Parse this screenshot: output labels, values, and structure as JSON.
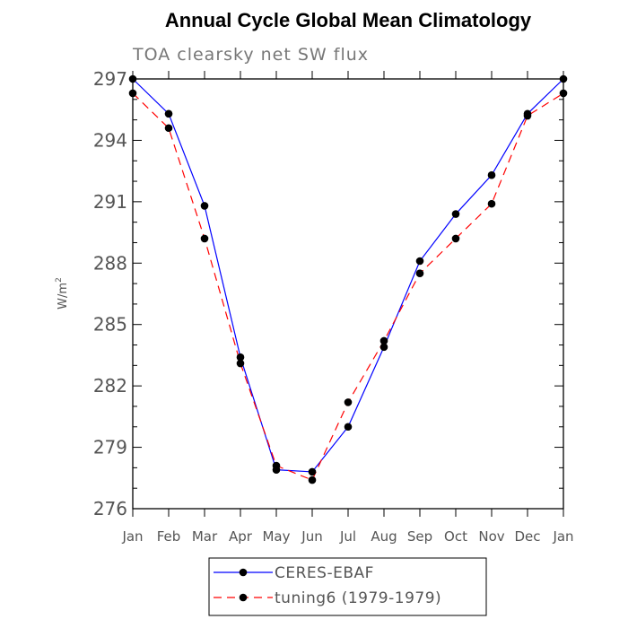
{
  "chart_data": {
    "type": "line",
    "title": "Annual Cycle Global Mean Climatology",
    "subtitle": "TOA clearsky net SW flux",
    "ylabel": "W/m",
    "ylabel_superscript": "2",
    "ylim": [
      276,
      297
    ],
    "yticks": [
      276,
      279,
      282,
      285,
      288,
      291,
      294,
      297
    ],
    "categories": [
      "Jan",
      "Feb",
      "Mar",
      "Apr",
      "May",
      "Jun",
      "Jul",
      "Aug",
      "Sep",
      "Oct",
      "Nov",
      "Dec",
      "Jan"
    ],
    "series": [
      {
        "name": "CERES-EBAF",
        "color": "#0000ff",
        "style": "solid",
        "values": [
          297.0,
          295.3,
          290.8,
          283.4,
          277.9,
          277.8,
          280.0,
          283.9,
          288.1,
          290.4,
          292.3,
          295.3,
          297.0
        ]
      },
      {
        "name": "tuning6 (1979-1979)",
        "color": "#ff0000",
        "style": "dashed",
        "values": [
          296.3,
          294.6,
          289.2,
          283.1,
          278.1,
          277.4,
          281.2,
          284.2,
          287.5,
          289.2,
          290.9,
          295.2,
          296.3
        ]
      }
    ],
    "grid": false,
    "legend_position": "bottom-center"
  }
}
